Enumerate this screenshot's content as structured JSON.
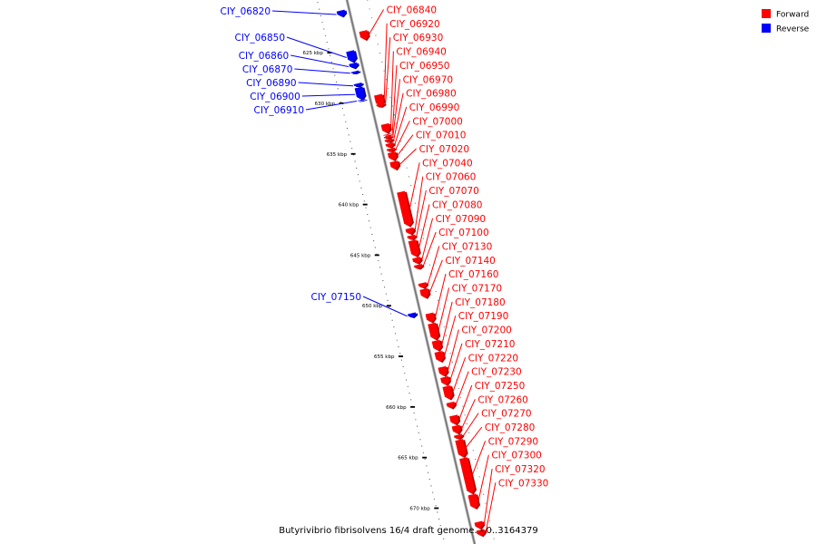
{
  "title": "Butyrivibrio fibrisolvens 16/4 draft genome. - 0..3164379",
  "legend": [
    {
      "label": "Forward",
      "color": "#ff0000"
    },
    {
      "label": "Reverse",
      "color": "#0000ff"
    }
  ],
  "colors": {
    "forward": "#ff0000",
    "reverse": "#0000ff",
    "forward_dark": "#b00000",
    "reverse_dark": "#000099",
    "axis": "#888888"
  },
  "ticks": [
    {
      "label": "625 kbp",
      "kb": 625
    },
    {
      "label": "630 kbp",
      "kb": 630
    },
    {
      "label": "635 kbp",
      "kb": 635
    },
    {
      "label": "640 kbp",
      "kb": 640
    },
    {
      "label": "645 kbp",
      "kb": 645
    },
    {
      "label": "650 kbp",
      "kb": 650
    },
    {
      "label": "655 kbp",
      "kb": 655
    },
    {
      "label": "660 kbp",
      "kb": 660
    },
    {
      "label": "665 kbp",
      "kb": 665
    },
    {
      "label": "670 kbp",
      "kb": 670
    }
  ],
  "reverse_genes": [
    {
      "label": "CIY_06820",
      "start": 621.3,
      "end": 621.9
    },
    {
      "label": "CIY_06850",
      "start": 625.3,
      "end": 626.4
    },
    {
      "label": "CIY_06860",
      "start": 626.5,
      "end": 627.0
    },
    {
      "label": "CIY_06870",
      "start": 627.3,
      "end": 627.5
    },
    {
      "label": "CIY_06890",
      "start": 628.5,
      "end": 628.8
    },
    {
      "label": "CIY_06900",
      "start": 628.9,
      "end": 630.1
    },
    {
      "label": "CIY_06910",
      "start": 630.1,
      "end": 630.2
    },
    {
      "label": "CIY_07150",
      "start": 651.2,
      "end": 651.6
    }
  ],
  "forward_genes": [
    {
      "label": "CIY_06840",
      "start": 623.7,
      "end": 624.6
    },
    {
      "label": "CIY_06920",
      "start": 630.0,
      "end": 631.1
    },
    {
      "label": "CIY_06930",
      "start": 630.9,
      "end": 631.2
    },
    {
      "label": "CIY_06940",
      "start": 632.9,
      "end": 633.8
    },
    {
      "label": "CIY_06950",
      "start": 633.9,
      "end": 634.0
    },
    {
      "label": "CIY_06970",
      "start": 634.1,
      "end": 634.3
    },
    {
      "label": "CIY_06980",
      "start": 634.4,
      "end": 634.7
    },
    {
      "label": "CIY_06990",
      "start": 634.8,
      "end": 635.2
    },
    {
      "label": "CIY_07000",
      "start": 635.3,
      "end": 635.6
    },
    {
      "label": "CIY_07010",
      "start": 635.7,
      "end": 636.5
    },
    {
      "label": "CIY_07020",
      "start": 636.6,
      "end": 637.4
    },
    {
      "label": "CIY_07040",
      "start": 639.6,
      "end": 643.0
    },
    {
      "label": "CIY_07060",
      "start": 643.2,
      "end": 643.8
    },
    {
      "label": "CIY_07070",
      "start": 643.9,
      "end": 644.3
    },
    {
      "label": "CIY_07080",
      "start": 644.4,
      "end": 646.0
    },
    {
      "label": "CIY_07090",
      "start": 646.1,
      "end": 646.7
    },
    {
      "label": "CIY_07100",
      "start": 646.8,
      "end": 647.2
    },
    {
      "label": "CIY_07130",
      "start": 648.6,
      "end": 649.1
    },
    {
      "label": "CIY_07140",
      "start": 649.2,
      "end": 650.1
    },
    {
      "label": "CIY_07160",
      "start": 651.6,
      "end": 652.5
    },
    {
      "label": "CIY_07170",
      "start": 652.6,
      "end": 654.2
    },
    {
      "label": "CIY_07180",
      "start": 654.3,
      "end": 655.3
    },
    {
      "label": "CIY_07190",
      "start": 655.4,
      "end": 656.4
    },
    {
      "label": "CIY_07200",
      "start": 656.9,
      "end": 657.8
    },
    {
      "label": "CIY_07210",
      "start": 657.9,
      "end": 658.7
    },
    {
      "label": "CIY_07220",
      "start": 658.8,
      "end": 660.1
    },
    {
      "label": "CIY_07230",
      "start": 660.4,
      "end": 661.0
    },
    {
      "label": "CIY_07250",
      "start": 661.7,
      "end": 662.6
    },
    {
      "label": "CIY_07260",
      "start": 662.7,
      "end": 663.5
    },
    {
      "label": "CIY_07270",
      "start": 663.6,
      "end": 664.0
    },
    {
      "label": "CIY_07280",
      "start": 664.1,
      "end": 665.8
    },
    {
      "label": "CIY_07290",
      "start": 665.9,
      "end": 669.4
    },
    {
      "label": "CIY_07300",
      "start": 669.5,
      "end": 670.9
    },
    {
      "label": "CIY_07320",
      "start": 672.2,
      "end": 672.9
    },
    {
      "label": "CIY_07330",
      "start": 673.0,
      "end": 673.6
    }
  ]
}
